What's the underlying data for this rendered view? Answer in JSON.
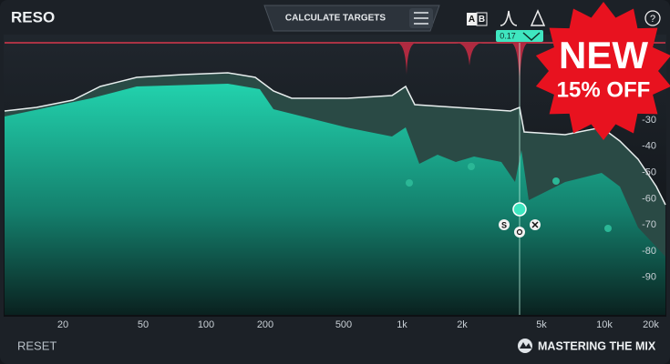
{
  "app": {
    "title": "RESO",
    "calculate_button": "CALCULATE TARGETS",
    "ab_toggle": {
      "a": "A",
      "b": "B"
    },
    "help": "?",
    "q_readout": "0.17",
    "band_solo": "S",
    "frequency_labels": [
      "20",
      "50",
      "100",
      "200",
      "500",
      "1k",
      "2k",
      "5k",
      "10k",
      "20k"
    ],
    "db_labels": [
      "-30",
      "-40",
      "-50",
      "-60",
      "-70",
      "-80",
      "-90"
    ],
    "badge": {
      "headline": "NEW",
      "offer": "15% OFF"
    },
    "reset": "RESET",
    "brand": "MASTERING THE MIX"
  }
}
